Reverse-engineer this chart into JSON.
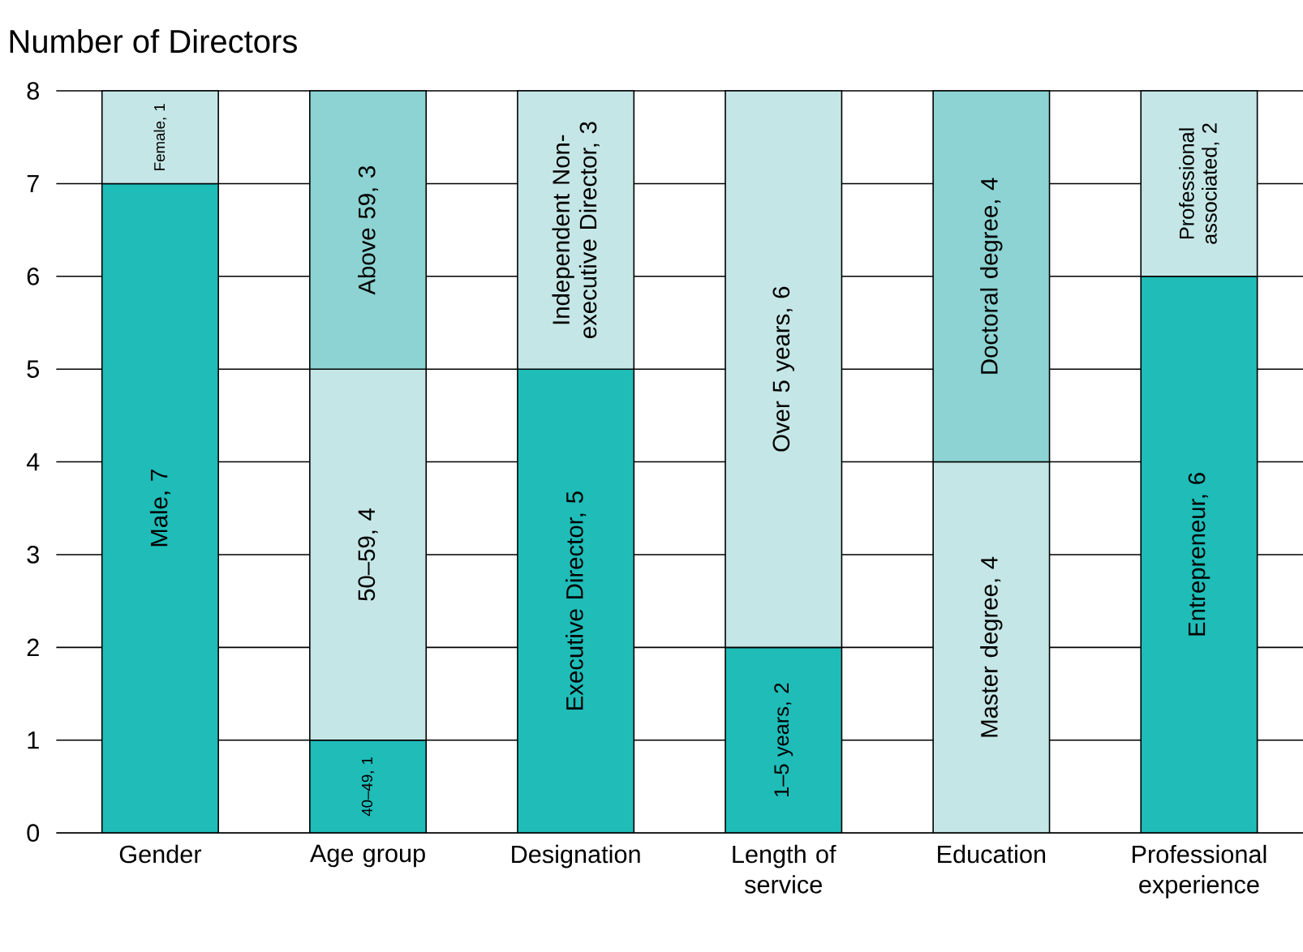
{
  "chart_data": {
    "type": "bar",
    "stacked": true,
    "title": "Number of Directors",
    "categories": [
      "Gender",
      "Age group",
      "Designation",
      "Length of service",
      "Education",
      "Professional experience"
    ],
    "series": [
      {
        "colors": [
          "#1fbcb8",
          "#1fbcb8",
          "#1fbcb8",
          "#1fbcb8",
          "#c5e6e6",
          "#1fbcb8"
        ],
        "values": [
          7,
          1,
          5,
          2,
          4,
          6
        ],
        "value_labels": [
          "Male, 7",
          "40–49, 1",
          "Executive Director, 5",
          "1–5 years, 2",
          "Master degree, 4",
          "Entrepreneur, 6"
        ]
      },
      {
        "colors": [
          "#c5e6e6",
          "#c5e6e6",
          "#c5e6e6",
          "#c5e6e6",
          "#8dd3d3",
          "#c5e6e6"
        ],
        "values": [
          1,
          4,
          3,
          6,
          4,
          2
        ],
        "value_labels": [
          "Female, 1",
          "50–59, 4",
          "Independent Non-executive Director, 3",
          "Over 5 years, 6",
          "Doctoral degree, 4",
          "Professional associated, 2"
        ]
      },
      {
        "colors": [
          null,
          "#8dd3d3",
          null,
          null,
          null,
          null
        ],
        "values": [
          null,
          3,
          null,
          null,
          null,
          null
        ],
        "value_labels": [
          null,
          "Above 59, 3",
          null,
          null,
          null,
          null
        ]
      }
    ],
    "ylim": [
      0,
      8
    ],
    "yticks": [
      0,
      1,
      2,
      3,
      4,
      5,
      6,
      7,
      8
    ],
    "grid": "y"
  }
}
